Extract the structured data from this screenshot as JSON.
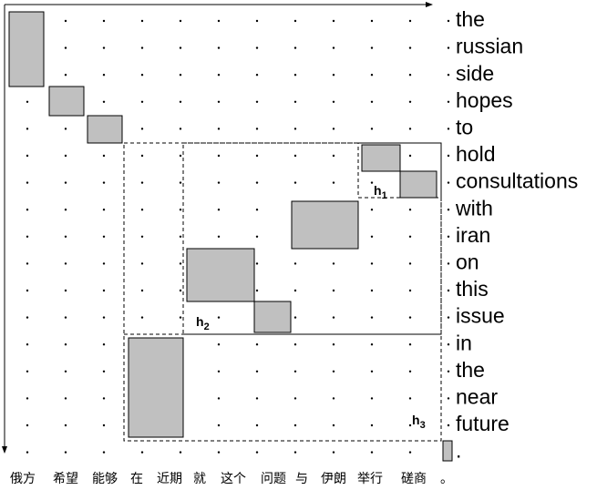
{
  "target_words": [
    "the",
    "russian",
    "side",
    "hopes",
    "to",
    "hold",
    "consultations",
    "with",
    "iran",
    "on",
    "this",
    "issue",
    "in",
    "the",
    "near",
    "future",
    "."
  ],
  "source_words": [
    "俄方",
    "希望",
    "能够",
    "在",
    "近期",
    "就",
    "这个",
    "问题",
    "与",
    "伊朗",
    "举行",
    "磋商",
    "。"
  ],
  "hypotheses": [
    {
      "letter": "h",
      "index": "1"
    },
    {
      "letter": "h",
      "index": "2"
    },
    {
      "letter": "h",
      "index": "3"
    }
  ]
}
